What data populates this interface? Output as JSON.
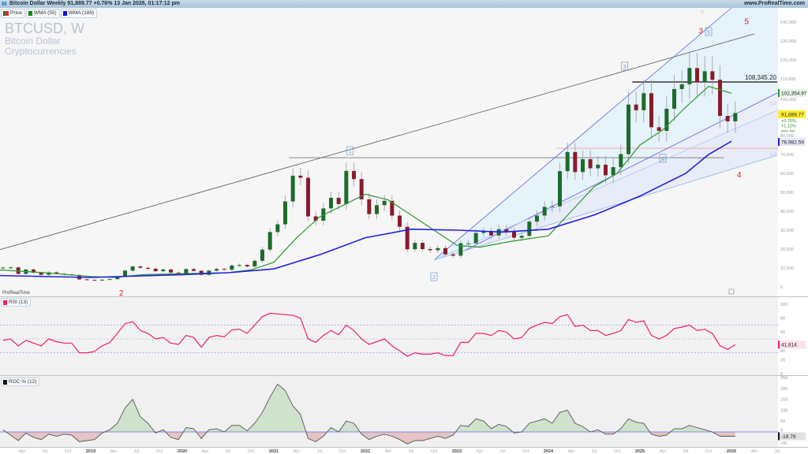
{
  "titlebar": {
    "title": "Bitcoin Dollar Weekly 91,889.77 +0.76% 13 Jan 2026, 01:17:12 pm",
    "site": "www.ProRealTime.com",
    "icon": "bar-chart-icon"
  },
  "legend": [
    {
      "label": "Price",
      "color": "#d32f2f"
    },
    {
      "label": "WMA (55)",
      "color": "#128a12"
    },
    {
      "label": "WMA (189)",
      "color": "#1010e0"
    }
  ],
  "watermark": {
    "symbol": "BTCUSD, W",
    "name": "Bitcoin Dollar",
    "category": "Cryptocurrencies"
  },
  "brand": "ProRealTime",
  "colors": {
    "up": "#1e6b2a",
    "down": "#8a1c2a",
    "wick": "#999999",
    "wma55": "#2a9a2a",
    "wma189": "#2020e0",
    "rsi": "#f0206a",
    "roc": "#555555",
    "wave_red": "#e02020",
    "wave_box": "#6a9ad8",
    "price_label_bg": "#ffee33"
  },
  "chart_data": [
    {
      "type": "candlestick",
      "title": "BTCUSD, W",
      "yticks": [
        0,
        10000,
        20000,
        30000,
        40000,
        50000,
        60000,
        70000,
        80000,
        100000,
        110000,
        120000,
        130000,
        140000
      ],
      "ytick_labels": [
        "0",
        "10,000",
        "20,000",
        "30,000",
        "40,000",
        "50,000",
        "60,000",
        "70,000",
        "80,000",
        "100,000",
        "110,000",
        "120,000",
        "130,000",
        "140,000"
      ],
      "ylim": [
        0,
        140000
      ],
      "start_month": "2018-01",
      "closes": [
        10200,
        10300,
        6900,
        9200,
        7500,
        6400,
        7700,
        7000,
        6600,
        6300,
        4000,
        3700,
        3400,
        3800,
        4100,
        5300,
        8600,
        10800,
        10100,
        9600,
        8300,
        9200,
        7600,
        7200,
        9400,
        8500,
        6400,
        8600,
        9500,
        9100,
        11300,
        11600,
        10800,
        13800,
        19700,
        29000,
        33100,
        45200,
        58800,
        57700,
        37300,
        35000,
        41500,
        47100,
        43800,
        61300,
        57000,
        46300,
        38500,
        43200,
        45500,
        37700,
        31800,
        19900,
        23300,
        20000,
        19400,
        20500,
        17200,
        16500,
        23100,
        23100,
        28500,
        29200,
        27200,
        30500,
        29200,
        26000,
        27000,
        34500,
        37700,
        42300,
        42600,
        61200,
        71300,
        60700,
        67500,
        62700,
        64600,
        59000,
        63300,
        70200,
        96400,
        93400,
        102400,
        84400,
        82500,
        94200,
        104600,
        107100,
        115700,
        108200,
        114000,
        109500,
        90400,
        87500,
        91889.77
      ],
      "series": [
        {
          "name": "WMA (55)",
          "points": [
            [
              "2018-01",
              9000
            ],
            [
              "2018-07",
              7500
            ],
            [
              "2019-01",
              5500
            ],
            [
              "2019-04",
              5000
            ],
            [
              "2019-08",
              6500
            ],
            [
              "2020-01",
              7000
            ],
            [
              "2020-07",
              7500
            ],
            [
              "2020-10",
              9000
            ],
            [
              "2021-01",
              13000
            ],
            [
              "2021-04",
              26000
            ],
            [
              "2021-07",
              37000
            ],
            [
              "2021-10",
              43000
            ],
            [
              "2022-01",
              49000
            ],
            [
              "2022-04",
              46000
            ],
            [
              "2022-07",
              38000
            ],
            [
              "2022-10",
              30000
            ],
            [
              "2023-01",
              22000
            ],
            [
              "2023-04",
              21000
            ],
            [
              "2023-08",
              24000
            ],
            [
              "2024-01",
              27000
            ],
            [
              "2024-04",
              40000
            ],
            [
              "2024-07",
              53000
            ],
            [
              "2024-10",
              60000
            ],
            [
              "2025-01",
              75000
            ],
            [
              "2025-04",
              83000
            ],
            [
              "2025-07",
              95000
            ],
            [
              "2025-10",
              106000
            ],
            [
              "2026-01",
              102354.97
            ]
          ]
        },
        {
          "name": "WMA (189)",
          "points": [
            [
              "2018-01",
              6000
            ],
            [
              "2019-01",
              5000
            ],
            [
              "2020-01",
              6500
            ],
            [
              "2020-07",
              7500
            ],
            [
              "2021-01",
              9500
            ],
            [
              "2021-07",
              17000
            ],
            [
              "2022-01",
              26000
            ],
            [
              "2022-07",
              30500
            ],
            [
              "2023-01",
              30000
            ],
            [
              "2023-07",
              29000
            ],
            [
              "2024-01",
              30500
            ],
            [
              "2024-07",
              38000
            ],
            [
              "2025-01",
              48000
            ],
            [
              "2025-07",
              60000
            ],
            [
              "2025-10",
              70000
            ],
            [
              "2026-01",
              76982.59
            ]
          ]
        }
      ],
      "last_values": {
        "price": "91,889.77",
        "change": "+0.76%",
        "prev_change": "+1.12%",
        "prev_label": "prev. bar",
        "wma55": "102,354.97",
        "wma189": "76,982.59",
        "level": "108,345.20"
      },
      "annotations": {
        "trendlines": [
          {
            "kind": "trend",
            "from": [
              "2018-01",
              19600
            ],
            "to": [
              "2026-04",
              133750
            ],
            "color": "#555555"
          },
          {
            "kind": "horizontal",
            "from": [
              "2024-12",
              108345.2
            ],
            "to": [
              "2026-07",
              108345.2
            ],
            "color": "#111111"
          },
          {
            "kind": "horizontal",
            "from": [
              "2021-03",
              68300
            ],
            "to": [
              "2025-12",
              68300
            ],
            "color": "#777777"
          },
          {
            "kind": "horizontal",
            "from": [
              "2024-02",
              73300
            ],
            "to": [
              "2026-07",
              73300
            ],
            "color": "#f4a0a0"
          },
          {
            "kind": "channel",
            "from": [
              "2022-10",
              14200
            ],
            "to": [
              "2026-01",
              147500
            ],
            "color": "#5a6ae0"
          },
          {
            "kind": "channel",
            "from": [
              "2023-02",
              19200
            ],
            "to": [
              "2026-07",
              102500
            ],
            "color": "#5a5ad8"
          },
          {
            "kind": "fib",
            "from": [
              "2022-10",
              14200
            ],
            "to": [
              "2026-07",
              93300
            ],
            "color": "#a8c8f0"
          },
          {
            "kind": "fib",
            "from": [
              "2022-10",
              14200
            ],
            "to": [
              "2026-07",
              69600
            ],
            "color": "#8ab4f0"
          }
        ],
        "fib_labels": [
          {
            "text": "0",
            "at": [
              "2025-09",
              144600
            ]
          },
          {
            "text": "1.0",
            "at": [
              "2026-06",
              96000
            ]
          },
          {
            "text": "1.0",
            "at": [
              "2026-06",
              69600
            ]
          }
        ],
        "waves_red": [
          {
            "text": "2",
            "at": [
              "2019-05",
              -4600
            ]
          },
          {
            "text": "3",
            "at": [
              "2025-09",
              134000
            ]
          },
          {
            "text": "4",
            "at": [
              "2026-02",
              58000
            ]
          },
          {
            "text": "5",
            "at": [
              "2026-03",
              139000
            ]
          }
        ],
        "waves_boxed": [
          {
            "text": "1",
            "at": [
              "2021-11",
              72000
            ]
          },
          {
            "text": "2",
            "at": [
              "2022-10",
              5400
            ]
          },
          {
            "text": "3",
            "at": [
              "2024-11",
              116700
            ]
          },
          {
            "text": "4",
            "at": [
              "2025-04",
              68000
            ]
          },
          {
            "text": "5",
            "at": [
              "2025-10",
              135000
            ]
          }
        ]
      }
    },
    {
      "type": "line",
      "title": "RSI (13)",
      "ylim": [
        0,
        100
      ],
      "yticks": [
        0,
        20,
        40,
        60,
        80,
        100
      ],
      "ytick_labels": [
        "0",
        "20",
        "40",
        "60",
        "80",
        "100"
      ],
      "levels": [
        30,
        50,
        70
      ],
      "start_month": "2018-01",
      "values": [
        48,
        50,
        40,
        48,
        44,
        40,
        50,
        46,
        44,
        44,
        30,
        30,
        32,
        40,
        45,
        58,
        72,
        75,
        62,
        58,
        50,
        52,
        44,
        42,
        55,
        52,
        38,
        52,
        55,
        53,
        63,
        64,
        58,
        70,
        82,
        87,
        86,
        85,
        84,
        80,
        50,
        45,
        55,
        62,
        56,
        70,
        62,
        50,
        42,
        46,
        50,
        40,
        33,
        25,
        30,
        28,
        28,
        30,
        26,
        26,
        45,
        45,
        58,
        58,
        55,
        62,
        60,
        50,
        52,
        65,
        70,
        74,
        72,
        82,
        85,
        68,
        70,
        62,
        62,
        55,
        58,
        62,
        78,
        74,
        76,
        55,
        50,
        55,
        65,
        67,
        70,
        62,
        64,
        58,
        40,
        35,
        41.814
      ],
      "last_value": "41.814"
    },
    {
      "type": "area",
      "title": "ROC % (12)",
      "ylim": [
        -50,
        250
      ],
      "yticks": [
        -50,
        0,
        50,
        100,
        150,
        200,
        250
      ],
      "ytick_labels": [
        "-50",
        "0",
        "50",
        "100",
        "150",
        "200",
        "250"
      ],
      "start_month": "2018-01",
      "values": [
        10,
        -15,
        -40,
        -5,
        -25,
        -35,
        -10,
        -20,
        -10,
        -15,
        -45,
        -40,
        -35,
        -5,
        10,
        40,
        110,
        150,
        70,
        40,
        -5,
        10,
        -25,
        -35,
        20,
        15,
        -30,
        10,
        15,
        0,
        30,
        30,
        5,
        40,
        90,
        160,
        220,
        190,
        120,
        80,
        -30,
        -45,
        -20,
        20,
        0,
        50,
        40,
        -10,
        -35,
        -20,
        -10,
        -20,
        -35,
        -55,
        -40,
        -40,
        -30,
        -20,
        -30,
        -15,
        30,
        25,
        60,
        50,
        15,
        35,
        25,
        -5,
        0,
        40,
        50,
        60,
        40,
        90,
        100,
        40,
        25,
        0,
        10,
        -10,
        -10,
        15,
        60,
        45,
        40,
        -10,
        -20,
        -15,
        15,
        15,
        30,
        20,
        10,
        0,
        -20,
        -20,
        -19.79
      ],
      "last_value": "-19.79"
    }
  ],
  "x_axis": [
    [
      "Apr",
      "2018-04"
    ],
    [
      "Jul",
      "2018-07"
    ],
    [
      "Oct",
      "2018-10"
    ],
    [
      "2019",
      "2019-01"
    ],
    [
      "Apr",
      "2019-04"
    ],
    [
      "Jul",
      "2019-07"
    ],
    [
      "Oct",
      "2019-10"
    ],
    [
      "2020",
      "2020-01"
    ],
    [
      "Apr",
      "2020-04"
    ],
    [
      "Jul",
      "2020-07"
    ],
    [
      "Oct",
      "2020-10"
    ],
    [
      "2021",
      "2021-01"
    ],
    [
      "Apr",
      "2021-04"
    ],
    [
      "Jul",
      "2021-07"
    ],
    [
      "Oct",
      "2021-10"
    ],
    [
      "2022",
      "2022-01"
    ],
    [
      "Apr",
      "2022-04"
    ],
    [
      "Jul",
      "2022-07"
    ],
    [
      "Oct",
      "2022-10"
    ],
    [
      "2023",
      "2023-01"
    ],
    [
      "Apr",
      "2023-04"
    ],
    [
      "Jul",
      "2023-07"
    ],
    [
      "Oct",
      "2023-10"
    ],
    [
      "2024",
      "2024-01"
    ],
    [
      "Apr",
      "2024-04"
    ],
    [
      "Jul",
      "2024-07"
    ],
    [
      "Oct",
      "2024-10"
    ],
    [
      "2025",
      "2025-01"
    ],
    [
      "Apr",
      "2025-04"
    ],
    [
      "Jul",
      "2025-07"
    ],
    [
      "Oct",
      "2025-10"
    ],
    [
      "2026",
      "2026-01"
    ],
    [
      "Apr",
      "2026-04"
    ],
    [
      "Jul",
      "2026-07"
    ]
  ]
}
